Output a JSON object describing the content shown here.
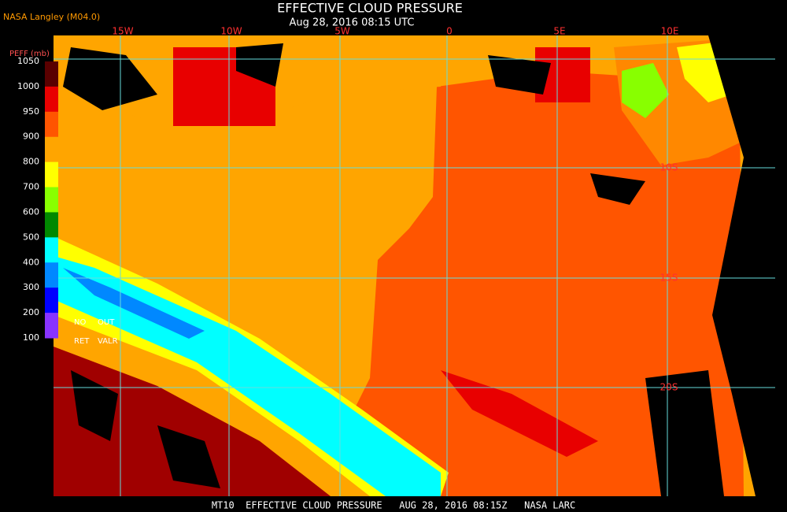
{
  "header": {
    "credit": "NASA Langley (M04.0)",
    "title": "EFFECTIVE CLOUD PRESSURE",
    "subtitle": "Aug 28, 2016 08:15 UTC"
  },
  "legend": {
    "title": "PEFF (mb)",
    "ticks": [
      "1050",
      "1000",
      "950",
      "900",
      "800",
      "700",
      "600",
      "500",
      "400",
      "300",
      "200",
      "100"
    ],
    "colors": [
      "#5a0000",
      "#e80000",
      "#ff5500",
      "#ffa500",
      "#ffff00",
      "#88ff00",
      "#008800",
      "#00ffff",
      "#0088ff",
      "#0000ff",
      "#8833ff"
    ],
    "flags": [
      "NO",
      "OUT",
      "RET",
      "VALR"
    ]
  },
  "grid": {
    "longitudes": [
      "15W",
      "10W",
      "5W",
      "0",
      "5E",
      "10E"
    ],
    "latitudes": [
      "10S",
      "15S",
      "20S"
    ]
  },
  "footer": "MT10  EFFECTIVE CLOUD PRESSURE   AUG 28, 2016 08:15Z   NASA LARC"
}
